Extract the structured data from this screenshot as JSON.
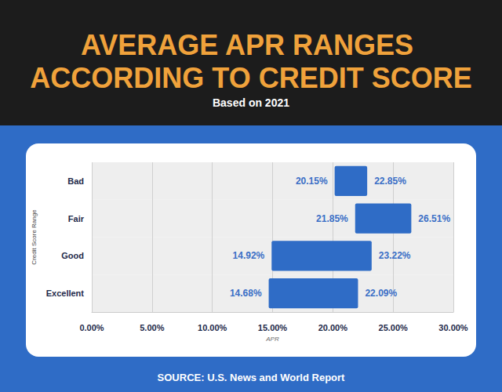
{
  "chart_data": {
    "type": "range_bar",
    "title": "AVERAGE APR RANGES ACCORDING TO CREDIT SCORE",
    "subtitle": "Based on 2021",
    "source": "SOURCE: U.S. News and World Report",
    "x_label": "APR",
    "y_label": "Credit Score Range",
    "orientation": "horizontal",
    "categories": [
      "Bad",
      "Fair",
      "Good",
      "Excellent"
    ],
    "values": [
      [
        20.15,
        22.85
      ],
      [
        21.85,
        26.51
      ],
      [
        14.92,
        23.22
      ],
      [
        14.68,
        22.09
      ]
    ],
    "value_labels": [
      [
        "20.15%",
        "22.85%"
      ],
      [
        "21.85%",
        "26.51%"
      ],
      [
        "14.92%",
        "23.22%"
      ],
      [
        "14.68%",
        "22.09%"
      ]
    ],
    "data_labels": true,
    "color": "#2f6cc6",
    "xlim": [
      0,
      30
    ],
    "xticks": [
      {
        "value": 0,
        "label": "0.00%"
      },
      {
        "value": 5,
        "label": "5.00%"
      },
      {
        "value": 10,
        "label": "10.00%"
      },
      {
        "value": 15,
        "label": "15.00%"
      },
      {
        "value": 20,
        "label": "20.00%"
      },
      {
        "value": 25,
        "label": "25.00%"
      },
      {
        "value": 30,
        "label": "30.00%"
      }
    ],
    "grid": true
  }
}
